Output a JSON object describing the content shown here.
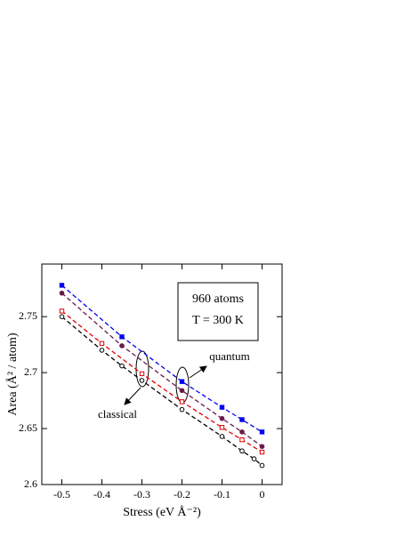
{
  "chart_data": {
    "type": "line",
    "x_label": "Stress (eV Å⁻²)",
    "y_label": "Area (Å² / atom)",
    "annotations": [
      "960 atoms",
      "T = 300 K",
      "quantum",
      "classical"
    ],
    "xlim": [
      -0.55,
      0.05
    ],
    "xticks": [
      -0.5,
      -0.4,
      -0.3,
      -0.2,
      -0.1,
      0
    ],
    "ylim": [
      2.6,
      2.797
    ],
    "yticks": [
      2.6,
      2.65,
      2.7,
      2.75
    ],
    "series": [
      {
        "color": "#000000",
        "marker": "circle-open",
        "x": [
          -0.5,
          -0.4,
          -0.35,
          -0.3,
          -0.2,
          -0.1,
          -0.05,
          -0.02,
          0
        ],
        "values": [
          2.75,
          2.72,
          2.706,
          2.693,
          2.667,
          2.643,
          2.63,
          2.623,
          2.617
        ]
      },
      {
        "color": "#e00000",
        "marker": "square-open",
        "x": [
          -0.5,
          -0.4,
          -0.3,
          -0.2,
          -0.1,
          -0.05,
          0
        ],
        "values": [
          2.755,
          2.726,
          2.699,
          2.674,
          2.651,
          2.64,
          2.629
        ]
      },
      {
        "color": "#6a1a4a",
        "marker": "circle-filled",
        "x": [
          -0.5,
          -0.35,
          -0.2,
          -0.1,
          -0.05,
          0
        ],
        "values": [
          2.771,
          2.724,
          2.684,
          2.659,
          2.647,
          2.634
        ]
      },
      {
        "color": "#0000ee",
        "marker": "square-filled",
        "x": [
          -0.5,
          -0.35,
          -0.2,
          -0.1,
          -0.05,
          0
        ],
        "values": [
          2.778,
          2.732,
          2.692,
          2.669,
          2.658,
          2.647
        ]
      }
    ]
  }
}
